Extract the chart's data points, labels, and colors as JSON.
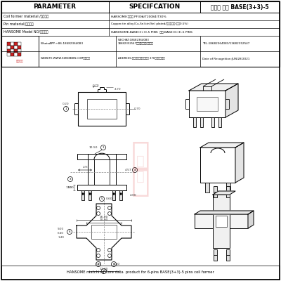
{
  "title": "HANSOME matching Core data  product for 6-pins BASE(3+3)-5 pins coil former",
  "header_title": "品名： 焕升 BASE(3+3)-5",
  "param_label": "PARAMETER",
  "spec_label": "SPECIFCATION",
  "row1_left": "Coil former material /线圈材料",
  "row1_right": "HANSOME(焕升） PF30A/T20084(T30%",
  "row2_left": "Pin material/端子材料",
  "row2_right": "Copper-tin alloy(Cu-Sn),tin(Sn) plated/铜合金镀锡(含陡0.5%)",
  "row3_left": "HANSOME Model NO/焕升品名",
  "row3_right": "HANDSOME-BASE(3+3)-5 PINS  焕升-BASE(3+3)-5 PINS",
  "logo_text": "焕升塑料",
  "whatsapp": "WhatsAPP:+86-18682364083",
  "wechat": "WECHAT:18682364083\n18682352547（微信同号）欢迎添加",
  "tel": "TEL:18682364083/13682352547",
  "website": "WEBSITE:WWW.SZBOBBIN.COM（网站）",
  "address": "ADDRESS:东菞市石排镇下沙大道 376号焕升工业园",
  "date_recog": "Date of Recognition:JUN/28/2021",
  "bg_color": "#ffffff",
  "lc": "#000000",
  "dc": "#444444",
  "wm_color": "#e8b0b0"
}
